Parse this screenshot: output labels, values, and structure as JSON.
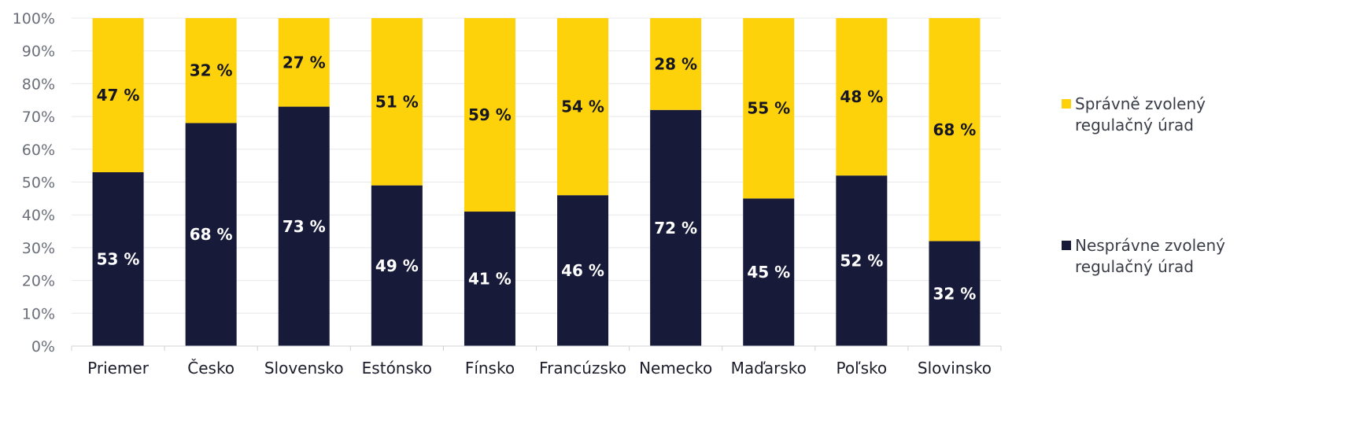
{
  "chart_data": {
    "type": "bar",
    "stacked": true,
    "categories": [
      "Priemer",
      "Česko",
      "Slovensko",
      "Estónsko",
      "Fínsko",
      "Francúzsko",
      "Nemecko",
      "Maďarsko",
      "Poľsko",
      "Slovinsko"
    ],
    "series": [
      {
        "name": "Nesprávne zvolený regulačný úrad",
        "legend_lines": [
          "Nesprávne zvolený",
          "regulačný úrad"
        ],
        "color": "#181a3a",
        "label_color": "#ffffff",
        "values": [
          53,
          68,
          73,
          49,
          41,
          46,
          72,
          45,
          52,
          32
        ],
        "labels": [
          "53 %",
          "68 %",
          "73 %",
          "49 %",
          "41 %",
          "46 %",
          "72 %",
          "45 %",
          "52 %",
          "32 %"
        ]
      },
      {
        "name": "Správně zvolený regulačný úrad",
        "legend_lines": [
          "Správně zvolený",
          "regulačný úrad"
        ],
        "color": "#fed20a",
        "label_color": "#151622",
        "values": [
          47,
          32,
          27,
          51,
          59,
          54,
          28,
          55,
          48,
          68
        ],
        "labels": [
          "47 %",
          "32 %",
          "27 %",
          "51 %",
          "59 %",
          "54 %",
          "28 %",
          "55 %",
          "48 %",
          "68 %"
        ]
      }
    ],
    "ylim": [
      0,
      100
    ],
    "yticks": [
      "0%",
      "10%",
      "20%",
      "30%",
      "40%",
      "50%",
      "60%",
      "70%",
      "80%",
      "90%",
      "100%"
    ],
    "grid": true,
    "legend_position": "right",
    "title": "",
    "xlabel": "",
    "ylabel": ""
  }
}
